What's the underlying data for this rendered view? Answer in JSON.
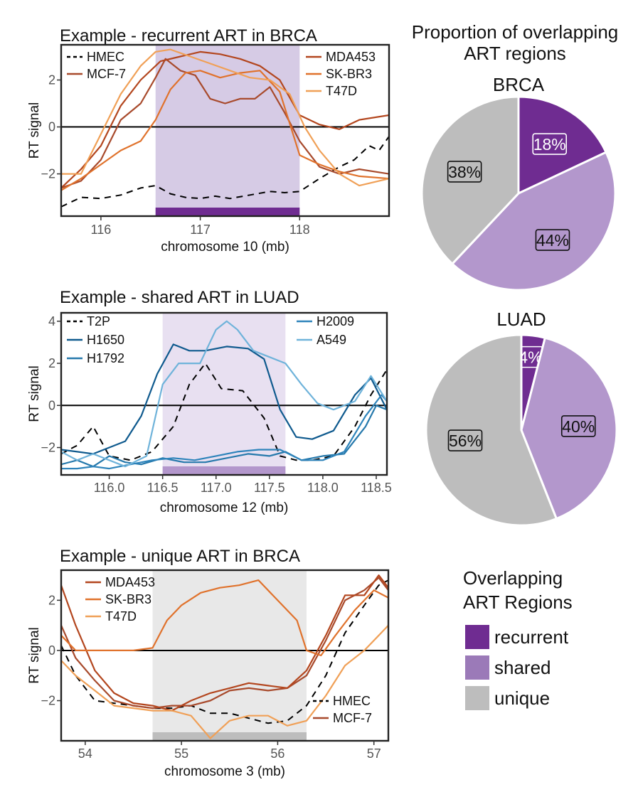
{
  "colors": {
    "recurrent": "#6f2c91",
    "shared": "#b397cc",
    "shared_light": "#e8e0f1",
    "recurrent_light": "#d6cbe5",
    "unique": "#bdbdbd",
    "unique_light": "#e8e8e8",
    "MDA453": "#b3461e",
    "SK-BR3": "#e0722c",
    "T47D": "#f0a057",
    "MCF-7": "#a84a2c",
    "HMEC": "#000000",
    "T2P": "#000000",
    "H1650": "#0f5a8e",
    "H1792": "#2679ac",
    "H2009": "#2e84bb",
    "A549": "#6fb3da"
  },
  "pie_title": "Proportion of overlapping ART regions",
  "legend": {
    "title": "Overlapping ART Regions",
    "items": [
      {
        "label": "recurrent",
        "color": "#6f2c91"
      },
      {
        "label": "shared",
        "color": "#9b7ab8"
      },
      {
        "label": "unique",
        "color": "#bdbdbd"
      }
    ]
  },
  "chart_data": [
    {
      "type": "line",
      "title": "Example - recurrent ART in BRCA",
      "xlabel": "chromosome 10 (mb)",
      "ylabel": "RT signal",
      "xlim": [
        115.6,
        118.9
      ],
      "ylim": [
        -3.8,
        3.5
      ],
      "xticks": [
        116,
        117,
        118
      ],
      "xtick_labels": [
        "116",
        "117",
        "118"
      ],
      "yticks": [
        -2,
        0,
        2
      ],
      "ytick_labels": [
        "−2",
        "0",
        "2"
      ],
      "highlight": {
        "x0": 116.55,
        "x1": 118.0,
        "kind": "recurrent"
      },
      "legend_left": [
        "HMEC",
        "MCF-7"
      ],
      "legend_right": [
        "MDA453",
        "SK-BR3",
        "T47D"
      ],
      "series": [
        {
          "name": "HMEC",
          "dashed": true,
          "x": [
            115.6,
            115.8,
            116.0,
            116.2,
            116.4,
            116.55,
            116.7,
            116.85,
            117.0,
            117.15,
            117.3,
            117.5,
            117.7,
            117.85,
            118.0,
            118.2,
            118.4,
            118.55,
            118.7,
            118.8,
            118.9
          ],
          "y": [
            -3.4,
            -3.0,
            -3.05,
            -2.9,
            -2.6,
            -2.5,
            -2.85,
            -3.0,
            -3.05,
            -2.95,
            -3.05,
            -2.9,
            -2.75,
            -2.8,
            -2.75,
            -2.2,
            -1.7,
            -1.4,
            -0.8,
            -1.0,
            -0.4
          ]
        },
        {
          "name": "MCF-7",
          "x": [
            115.6,
            115.8,
            116.0,
            116.2,
            116.4,
            116.55,
            116.65,
            116.8,
            116.95,
            117.1,
            117.25,
            117.4,
            117.55,
            117.7,
            117.85,
            118.0,
            118.2,
            118.4,
            118.6,
            118.9
          ],
          "y": [
            -2.6,
            -2.3,
            -1.4,
            0.3,
            1.0,
            2.1,
            2.9,
            2.4,
            2.2,
            1.2,
            1.0,
            1.2,
            1.2,
            1.7,
            0.6,
            -0.6,
            -1.7,
            -2.0,
            -1.8,
            -2.0
          ]
        },
        {
          "name": "MDA453",
          "x": [
            115.6,
            115.8,
            116.0,
            116.2,
            116.4,
            116.6,
            116.8,
            117.0,
            117.2,
            117.4,
            117.6,
            117.8,
            118.0,
            118.2,
            118.4,
            118.6,
            118.9
          ],
          "y": [
            -2.6,
            -1.8,
            -0.8,
            0.9,
            2.0,
            2.8,
            3.0,
            3.2,
            3.1,
            2.9,
            2.6,
            2.0,
            0.5,
            0.1,
            -0.1,
            0.3,
            0.5
          ]
        },
        {
          "name": "SK-BR3",
          "x": [
            115.6,
            115.8,
            116.0,
            116.2,
            116.4,
            116.55,
            116.7,
            116.85,
            117.0,
            117.2,
            117.4,
            117.6,
            117.8,
            118.0,
            118.2,
            118.4,
            118.6,
            118.9
          ],
          "y": [
            -2.7,
            -2.2,
            -1.6,
            -1.0,
            -0.6,
            0.3,
            1.6,
            2.3,
            2.4,
            2.1,
            2.3,
            2.4,
            1.5,
            -1.2,
            -1.6,
            -1.9,
            -2.1,
            -2.2
          ]
        },
        {
          "name": "T47D",
          "x": [
            115.6,
            115.8,
            116.0,
            116.2,
            116.4,
            116.55,
            116.7,
            116.9,
            117.1,
            117.3,
            117.5,
            117.7,
            117.9,
            118.05,
            118.2,
            118.4,
            118.6,
            118.9
          ],
          "y": [
            -2.0,
            -2.0,
            -0.3,
            1.4,
            2.6,
            3.2,
            3.3,
            3.0,
            2.7,
            2.4,
            2.1,
            2.0,
            1.4,
            0.0,
            -1.0,
            -2.0,
            -2.5,
            -2.2
          ]
        }
      ]
    },
    {
      "type": "line",
      "title": "Example - shared ART in LUAD",
      "xlabel": "chromosome 12 (mb)",
      "ylabel": "RT signal",
      "xlim": [
        115.55,
        118.6
      ],
      "ylim": [
        -3.3,
        4.4
      ],
      "xticks": [
        116.0,
        116.5,
        117.0,
        117.5,
        118.0,
        118.5
      ],
      "xtick_labels": [
        "116.0",
        "116.5",
        "117.0",
        "117.5",
        "118.0",
        "118.5"
      ],
      "yticks": [
        -2,
        0,
        2,
        4
      ],
      "ytick_labels": [
        "−2",
        "0",
        "2",
        "4"
      ],
      "highlight": {
        "x0": 116.5,
        "x1": 117.65,
        "kind": "shared"
      },
      "legend_left": [
        "T2P",
        "H1650",
        "H1792"
      ],
      "legend_right": [
        "H2009",
        "A549"
      ],
      "series": [
        {
          "name": "T2P",
          "dashed": true,
          "x": [
            115.55,
            115.7,
            115.85,
            116.0,
            116.2,
            116.4,
            116.6,
            116.75,
            116.9,
            117.05,
            117.25,
            117.45,
            117.6,
            117.75,
            117.9,
            118.1,
            118.3,
            118.45,
            118.6
          ],
          "y": [
            -2.3,
            -1.9,
            -1.0,
            -2.4,
            -2.6,
            -2.2,
            -1.0,
            1.0,
            2.0,
            0.8,
            0.7,
            -0.6,
            -2.4,
            -2.6,
            -2.6,
            -2.4,
            -1.0,
            0.5,
            1.7
          ]
        },
        {
          "name": "H1650",
          "x": [
            115.55,
            115.7,
            115.85,
            116.0,
            116.15,
            116.3,
            116.45,
            116.6,
            116.75,
            116.9,
            117.1,
            117.3,
            117.45,
            117.6,
            117.75,
            117.9,
            118.1,
            118.3,
            118.45,
            118.6
          ],
          "y": [
            -2.1,
            -2.2,
            -2.3,
            -2.0,
            -1.7,
            -0.5,
            1.5,
            2.9,
            2.6,
            2.6,
            2.8,
            2.7,
            2.2,
            -0.2,
            -1.5,
            -1.6,
            -1.2,
            0.5,
            1.3,
            -0.2
          ]
        },
        {
          "name": "H1792",
          "x": [
            115.55,
            115.7,
            115.85,
            116.0,
            116.15,
            116.3,
            116.5,
            116.7,
            116.9,
            117.1,
            117.3,
            117.5,
            117.65,
            117.8,
            118.0,
            118.2,
            118.4,
            118.5,
            118.6
          ],
          "y": [
            -2.8,
            -2.6,
            -2.9,
            -2.4,
            -2.7,
            -2.8,
            -2.5,
            -2.7,
            -2.7,
            -2.5,
            -2.3,
            -2.4,
            -2.2,
            -2.6,
            -2.4,
            -2.3,
            -1.0,
            0.0,
            -0.2
          ]
        },
        {
          "name": "H2009",
          "x": [
            115.55,
            115.7,
            115.85,
            116.0,
            116.2,
            116.4,
            116.6,
            116.8,
            117.0,
            117.2,
            117.4,
            117.6,
            117.8,
            118.0,
            118.2,
            118.4,
            118.55,
            118.6
          ],
          "y": [
            -3.0,
            -3.0,
            -2.9,
            -3.0,
            -2.8,
            -2.6,
            -2.5,
            -2.6,
            -2.4,
            -2.2,
            -2.1,
            -2.1,
            -2.6,
            -2.6,
            -2.2,
            -0.5,
            0.5,
            0.2
          ]
        },
        {
          "name": "A549",
          "x": [
            115.55,
            115.7,
            115.85,
            116.0,
            116.15,
            116.35,
            116.5,
            116.65,
            116.85,
            117.0,
            117.1,
            117.2,
            117.35,
            117.5,
            117.65,
            117.8,
            117.95,
            118.1,
            118.3,
            118.45,
            118.6
          ],
          "y": [
            -2.2,
            -2.6,
            -2.3,
            -2.6,
            -2.9,
            -2.4,
            1.0,
            2.0,
            2.0,
            3.6,
            4.0,
            3.6,
            2.6,
            2.3,
            2.0,
            1.0,
            0.1,
            -0.2,
            0.2,
            1.4,
            0.2
          ]
        }
      ]
    },
    {
      "type": "line",
      "title": "Example - unique ART in BRCA",
      "xlabel": "chromosome 3 (mb)",
      "ylabel": "RT signal",
      "xlim": [
        53.75,
        57.15
      ],
      "ylim": [
        -3.6,
        3.2
      ],
      "xticks": [
        54,
        55,
        56,
        57
      ],
      "xtick_labels": [
        "54",
        "55",
        "56",
        "57"
      ],
      "yticks": [
        -2,
        0,
        2
      ],
      "ytick_labels": [
        "−2",
        "0",
        "2"
      ],
      "highlight": {
        "x0": 54.7,
        "x1": 56.3,
        "kind": "unique"
      },
      "legend_left": [
        "MDA453",
        "SK-BR3",
        "T47D"
      ],
      "legend_right": [
        "HMEC",
        "MCF-7"
      ],
      "series": [
        {
          "name": "HMEC",
          "dashed": true,
          "x": [
            53.75,
            53.9,
            54.1,
            54.3,
            54.5,
            54.7,
            54.9,
            55.1,
            55.3,
            55.5,
            55.7,
            55.9,
            56.1,
            56.3,
            56.5,
            56.7,
            56.9,
            57.05,
            57.15
          ],
          "y": [
            0.2,
            -1.0,
            -2.0,
            -2.1,
            -2.2,
            -2.3,
            -2.3,
            -2.2,
            -2.5,
            -2.5,
            -2.7,
            -2.9,
            -2.8,
            -2.2,
            -1.0,
            0.7,
            1.8,
            2.6,
            2.8
          ]
        },
        {
          "name": "MCF-7",
          "x": [
            53.75,
            53.9,
            54.1,
            54.3,
            54.5,
            54.7,
            54.9,
            55.1,
            55.3,
            55.5,
            55.7,
            55.9,
            56.1,
            56.3,
            56.5,
            56.7,
            56.9,
            57.05,
            57.15
          ],
          "y": [
            1.0,
            -0.3,
            -1.2,
            -2.0,
            -2.2,
            -2.3,
            -2.2,
            -2.2,
            -2.0,
            -1.6,
            -1.5,
            -1.6,
            -1.5,
            -1.0,
            0.4,
            2.0,
            2.4,
            2.9,
            2.4
          ]
        },
        {
          "name": "MDA453",
          "x": [
            53.75,
            53.9,
            54.1,
            54.3,
            54.5,
            54.7,
            54.9,
            55.1,
            55.3,
            55.5,
            55.7,
            55.9,
            56.1,
            56.3,
            56.5,
            56.7,
            56.9,
            57.05,
            57.15
          ],
          "y": [
            2.6,
            1.0,
            -0.8,
            -1.7,
            -2.1,
            -2.2,
            -2.4,
            -2.0,
            -1.7,
            -1.5,
            -1.3,
            -1.4,
            -1.5,
            -0.8,
            0.6,
            2.2,
            2.2,
            3.0,
            2.5
          ]
        },
        {
          "name": "SK-BR3",
          "x": [
            53.75,
            53.9,
            54.1,
            54.3,
            54.5,
            54.7,
            54.85,
            55.0,
            55.2,
            55.4,
            55.6,
            55.8,
            56.0,
            56.2,
            56.3,
            56.45,
            56.6,
            56.8,
            57.0,
            57.15
          ],
          "y": [
            0.6,
            0.0,
            0.0,
            0.0,
            0.0,
            0.1,
            1.2,
            1.8,
            2.3,
            2.5,
            2.6,
            2.8,
            2.0,
            1.2,
            0.0,
            -0.2,
            0.6,
            1.6,
            2.4,
            2.1
          ]
        },
        {
          "name": "T47D",
          "x": [
            53.75,
            53.9,
            54.1,
            54.3,
            54.5,
            54.7,
            54.9,
            55.1,
            55.3,
            55.5,
            55.7,
            55.9,
            56.1,
            56.3,
            56.5,
            56.7,
            56.9,
            57.05,
            57.15
          ],
          "y": [
            -0.4,
            -1.0,
            -1.6,
            -2.2,
            -2.3,
            -2.4,
            -2.4,
            -2.6,
            -3.5,
            -2.8,
            -2.6,
            -2.6,
            -3.0,
            -2.8,
            -1.8,
            -0.6,
            0.0,
            0.6,
            1.0
          ]
        }
      ]
    },
    {
      "type": "pie",
      "title": "BRCA",
      "slices": [
        {
          "label": "recurrent",
          "value": 18,
          "text": "18%"
        },
        {
          "label": "shared",
          "value": 44,
          "text": "44%"
        },
        {
          "label": "unique",
          "value": 38,
          "text": "38%"
        }
      ]
    },
    {
      "type": "pie",
      "title": "LUAD",
      "slices": [
        {
          "label": "recurrent",
          "value": 4,
          "text": "4%"
        },
        {
          "label": "shared",
          "value": 40,
          "text": "40%"
        },
        {
          "label": "unique",
          "value": 56,
          "text": "56%"
        }
      ]
    }
  ]
}
